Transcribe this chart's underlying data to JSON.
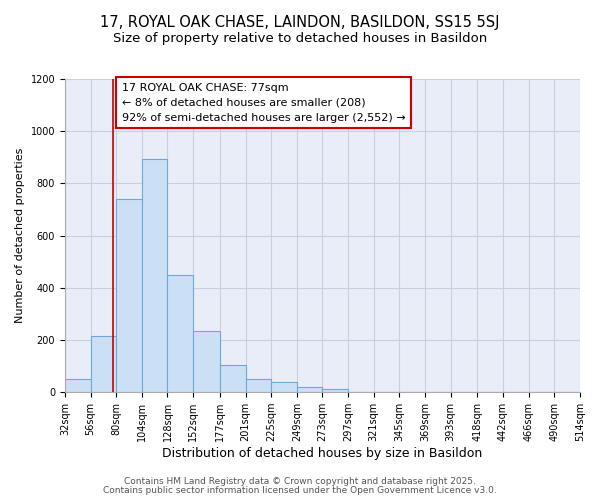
{
  "title_line1": "17, ROYAL OAK CHASE, LAINDON, BASILDON, SS15 5SJ",
  "title_line2": "Size of property relative to detached houses in Basildon",
  "xlabel": "Distribution of detached houses by size in Basildon",
  "ylabel": "Number of detached properties",
  "bar_edges": [
    32,
    56,
    80,
    104,
    128,
    152,
    177,
    201,
    225,
    249,
    273,
    297,
    321,
    345,
    369,
    393,
    418,
    442,
    466,
    490,
    514
  ],
  "bar_heights": [
    50,
    215,
    740,
    895,
    450,
    235,
    105,
    50,
    38,
    20,
    12,
    0,
    0,
    0,
    0,
    0,
    0,
    0,
    0,
    0
  ],
  "bar_color": "#cce0f5",
  "bar_edge_color": "#6aaad4",
  "vertical_line_x": 77,
  "vertical_line_color": "#cc0000",
  "annotation_text": "17 ROYAL OAK CHASE: 77sqm\n← 8% of detached houses are smaller (208)\n92% of semi-detached houses are larger (2,552) →",
  "annotation_box_color": "#ffffff",
  "annotation_box_edge_color": "#cc0000",
  "xlim": [
    32,
    514
  ],
  "ylim": [
    0,
    1200
  ],
  "yticks": [
    0,
    200,
    400,
    600,
    800,
    1000,
    1200
  ],
  "xtick_labels": [
    "32sqm",
    "56sqm",
    "80sqm",
    "104sqm",
    "128sqm",
    "152sqm",
    "177sqm",
    "201sqm",
    "225sqm",
    "249sqm",
    "273sqm",
    "297sqm",
    "321sqm",
    "345sqm",
    "369sqm",
    "393sqm",
    "418sqm",
    "442sqm",
    "466sqm",
    "490sqm",
    "514sqm"
  ],
  "footnote1": "Contains HM Land Registry data © Crown copyright and database right 2025.",
  "footnote2": "Contains public sector information licensed under the Open Government Licence v3.0.",
  "plot_bg_color": "#e8edf8",
  "fig_bg_color": "#ffffff",
  "grid_color": "#c8d0e0",
  "title_fontsize": 10.5,
  "subtitle_fontsize": 9.5,
  "annotation_fontsize": 8,
  "footnote_fontsize": 6.5,
  "tick_fontsize": 7,
  "ylabel_fontsize": 8,
  "xlabel_fontsize": 9
}
